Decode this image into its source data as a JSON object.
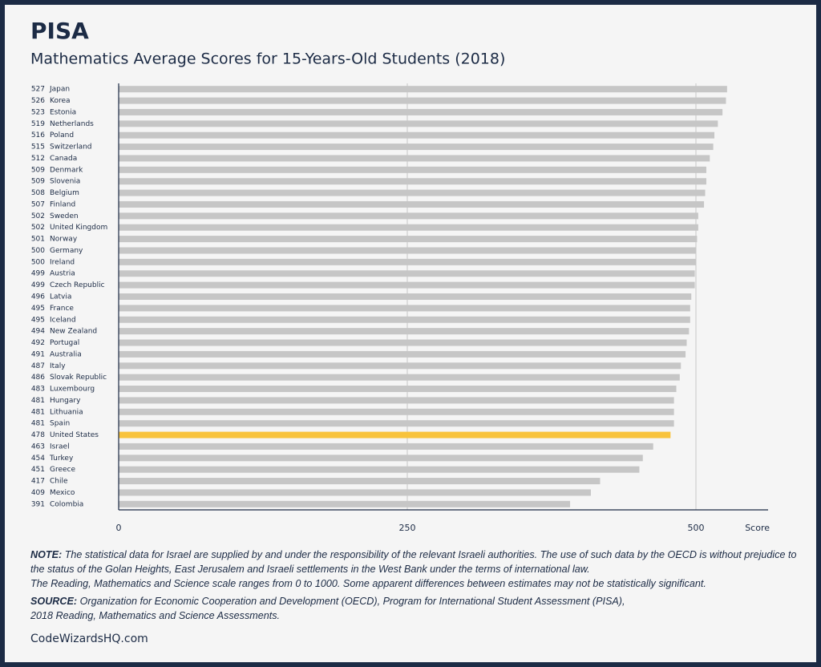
{
  "chart_data": {
    "type": "hbar",
    "title": "PISA",
    "subtitle": "Mathematics Average Scores for 15-Years-Old Students (2018)",
    "x_label": "Score",
    "categories": [
      "Japan",
      "Korea",
      "Estonia",
      "Netherlands",
      "Poland",
      "Switzerland",
      "Canada",
      "Denmark",
      "Slovenia",
      "Belgium",
      "Finland",
      "Sweden",
      "United Kingdom",
      "Norway",
      "Germany",
      "Ireland",
      "Austria",
      "Czech Republic",
      "Latvia",
      "France",
      "Iceland",
      "New Zealand",
      "Portugal",
      "Australia",
      "Italy",
      "Slovak Republic",
      "Luxembourg",
      "Hungary",
      "Lithuania",
      "Spain",
      "United States",
      "Israel",
      "Turkey",
      "Greece",
      "Chile",
      "Mexico",
      "Colombia"
    ],
    "values": [
      527,
      526,
      523,
      519,
      516,
      515,
      512,
      509,
      509,
      508,
      507,
      502,
      502,
      501,
      500,
      500,
      499,
      499,
      496,
      495,
      495,
      494,
      492,
      491,
      487,
      486,
      483,
      481,
      481,
      481,
      478,
      463,
      454,
      451,
      417,
      409,
      391
    ],
    "colors": [
      "#c6c6c6",
      "#c6c6c6",
      "#c6c6c6",
      "#c6c6c6",
      "#c6c6c6",
      "#c6c6c6",
      "#c6c6c6",
      "#c6c6c6",
      "#c6c6c6",
      "#c6c6c6",
      "#c6c6c6",
      "#c6c6c6",
      "#c6c6c6",
      "#c6c6c6",
      "#c6c6c6",
      "#c6c6c6",
      "#c6c6c6",
      "#c6c6c6",
      "#c6c6c6",
      "#c6c6c6",
      "#c6c6c6",
      "#c6c6c6",
      "#c6c6c6",
      "#c6c6c6",
      "#c6c6c6",
      "#c6c6c6",
      "#c6c6c6",
      "#c6c6c6",
      "#c6c6c6",
      "#c6c6c6",
      "#f8c33c",
      "#c6c6c6",
      "#c6c6c6",
      "#c6c6c6",
      "#c6c6c6",
      "#c6c6c6",
      "#c6c6c6"
    ],
    "xlim": [
      0,
      562.5
    ],
    "xticks": [
      0,
      250,
      500
    ],
    "grid": true
  },
  "note": {
    "label": "NOTE:",
    "paragraphs": [
      "The statistical data for Israel are supplied by and under the responsibility of the relevant Israeli authorities. The use of such data by the OECD is without prejudice to the status of the Golan Heights, East Jerusalem and Israeli settlements in the West Bank under the terms of international law.",
      "The Reading, Mathematics and Science scale ranges from 0 to 1000. Some apparent differences between estimates may not be statistically significant."
    ]
  },
  "source": {
    "label": "SOURCE:",
    "lines": [
      "Organization for Economic Cooperation and Development (OECD), Program for International Student Assessment (PISA),",
      "2018 Reading, Mathematics and Science Assessments."
    ]
  },
  "footer": "CodeWizardsHQ.com"
}
